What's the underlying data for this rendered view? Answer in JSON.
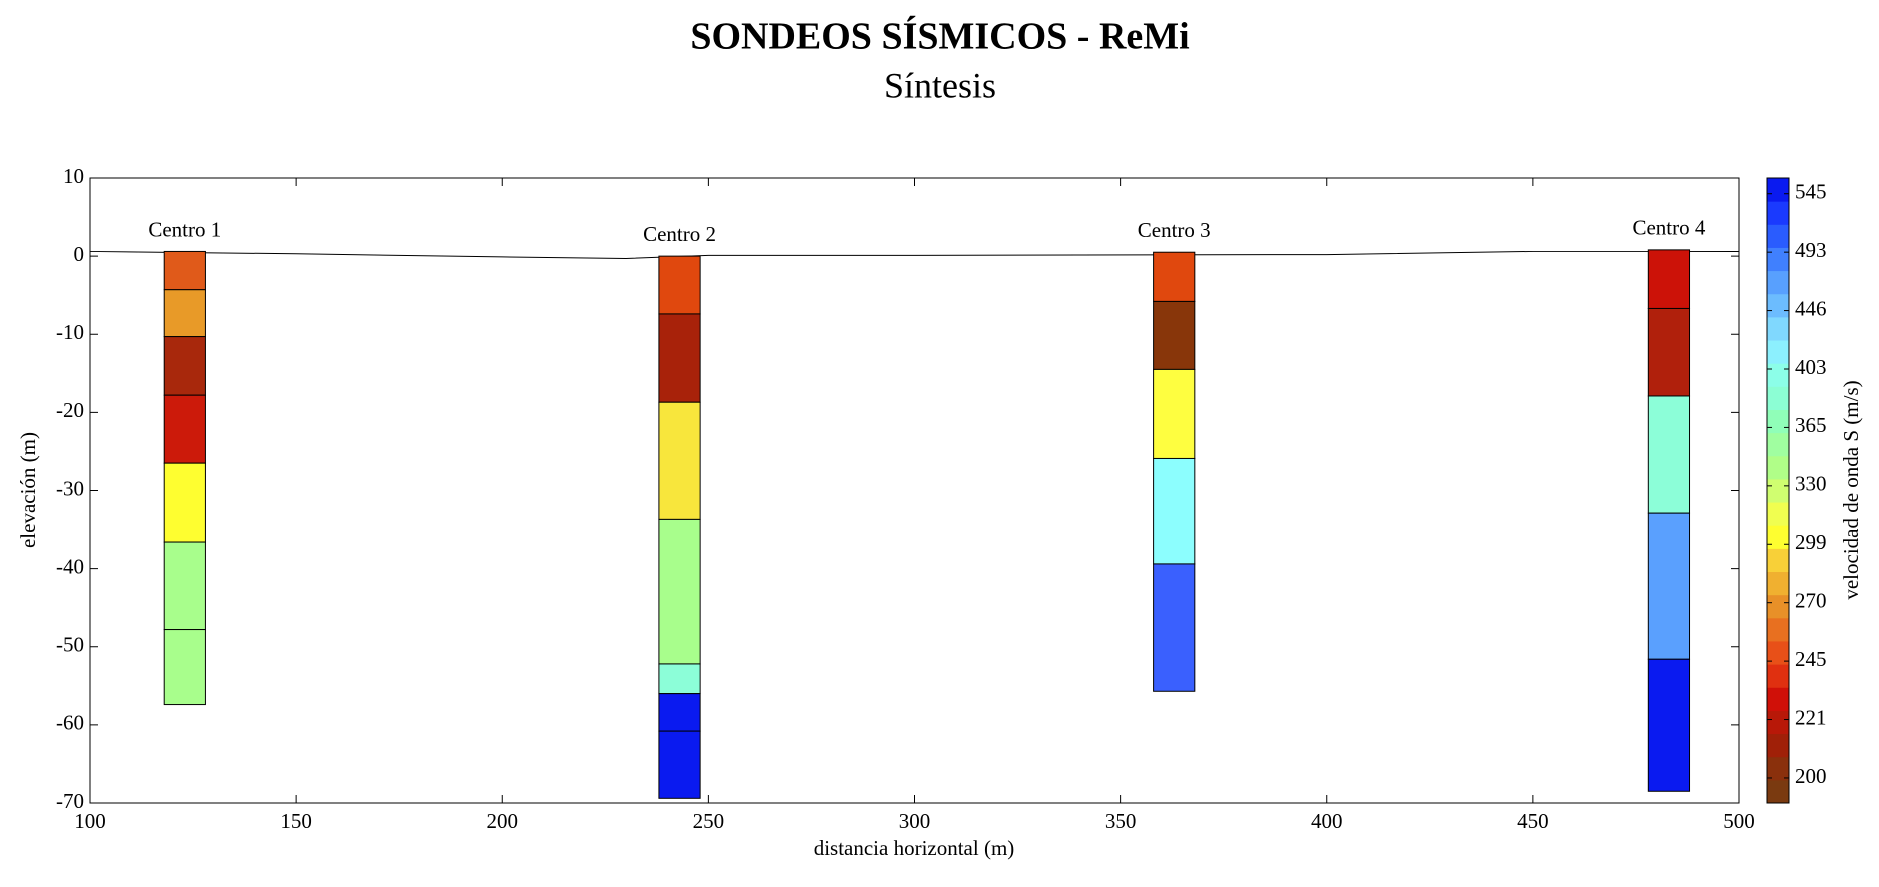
{
  "chart_data": {
    "type": "sounding",
    "title": "SONDEOS SÍSMICOS - ReMi",
    "subtitle": "Síntesis",
    "x_label": "distancia horizontal (m)",
    "y_label": "elevación (m)",
    "xlim": [
      100,
      500
    ],
    "ylim": [
      -70,
      10
    ],
    "xticks": [
      100,
      150,
      200,
      250,
      300,
      350,
      400,
      450,
      500
    ],
    "yticks": [
      10,
      0,
      -10,
      -20,
      -30,
      -40,
      -50,
      -60,
      -70
    ],
    "surface": {
      "x": [
        100,
        150,
        200,
        230,
        250,
        300,
        400,
        450,
        500
      ],
      "y": [
        0.6,
        0.3,
        -0.1,
        -0.3,
        0.1,
        0.1,
        0.2,
        0.6,
        0.6
      ]
    },
    "soundings": [
      {
        "name": "Centro 1",
        "x": [
          118,
          128
        ],
        "layers": [
          {
            "top": 0.6,
            "bottom": -4.3,
            "color": "#e05a1a"
          },
          {
            "top": -4.3,
            "bottom": -10.3,
            "color": "#e89a28"
          },
          {
            "top": -10.3,
            "bottom": -17.8,
            "color": "#a8280c"
          },
          {
            "top": -17.8,
            "bottom": -26.5,
            "color": "#cc1a0a"
          },
          {
            "top": -26.5,
            "bottom": -36.6,
            "color": "#fefe30"
          },
          {
            "top": -36.6,
            "bottom": -47.8,
            "color": "#a8fe8c"
          },
          {
            "top": -47.8,
            "bottom": -57.4,
            "color": "#a8fe8c"
          }
        ]
      },
      {
        "name": "Centro 2",
        "x": [
          238,
          248
        ],
        "layers": [
          {
            "top": 0,
            "bottom": -7.4,
            "color": "#e0480e"
          },
          {
            "top": -7.4,
            "bottom": -18.7,
            "color": "#a8220a"
          },
          {
            "top": -18.7,
            "bottom": -33.7,
            "color": "#f8e63c"
          },
          {
            "top": -33.7,
            "bottom": -52.2,
            "color": "#a8fe8c"
          },
          {
            "top": -52.2,
            "bottom": -56,
            "color": "#8cfed8"
          },
          {
            "top": -56,
            "bottom": -60.8,
            "color": "#0a1af0"
          },
          {
            "top": -60.8,
            "bottom": -69.4,
            "color": "#0a1af0"
          }
        ]
      },
      {
        "name": "Centro 3",
        "x": [
          358,
          368
        ],
        "layers": [
          {
            "top": 0.5,
            "bottom": -5.8,
            "color": "#e0480e"
          },
          {
            "top": -5.8,
            "bottom": -14.5,
            "color": "#88360a"
          },
          {
            "top": -14.5,
            "bottom": -25.9,
            "color": "#fefe40"
          },
          {
            "top": -25.9,
            "bottom": -39.4,
            "color": "#8cfefe"
          },
          {
            "top": -39.4,
            "bottom": -55.7,
            "color": "#3a60fe"
          }
        ]
      },
      {
        "name": "Centro 4",
        "x": [
          478,
          488
        ],
        "layers": [
          {
            "top": 0.8,
            "bottom": -6.7,
            "color": "#cc1208"
          },
          {
            "top": -6.7,
            "bottom": -17.9,
            "color": "#b0200c"
          },
          {
            "top": -17.9,
            "bottom": -32.9,
            "color": "#8cfed8"
          },
          {
            "top": -32.9,
            "bottom": -51.6,
            "color": "#5aa0fe"
          },
          {
            "top": -51.6,
            "bottom": -68.5,
            "color": "#0a1af0"
          }
        ]
      }
    ],
    "colorbar": {
      "label": "velocidad de onda S (m/s)",
      "clim": [
        191,
        559
      ],
      "ticks": [
        200,
        221,
        245,
        270,
        299,
        330,
        365,
        403,
        446,
        493,
        545
      ],
      "colors": [
        "#7a3a10",
        "#8a300c",
        "#a02008",
        "#b81808",
        "#d01008",
        "#e03010",
        "#e85018",
        "#e87020",
        "#e89028",
        "#f0b030",
        "#f8d038",
        "#fefe30",
        "#f0fe50",
        "#d0fe70",
        "#b0fe88",
        "#a0fea0",
        "#90feb8",
        "#8cfed4",
        "#8cfee8",
        "#8cf0fe",
        "#80d8fe",
        "#6cbcfe",
        "#58a0fe",
        "#4080fe",
        "#2a5cfe",
        "#1a3afe",
        "#0a1af0"
      ]
    }
  }
}
